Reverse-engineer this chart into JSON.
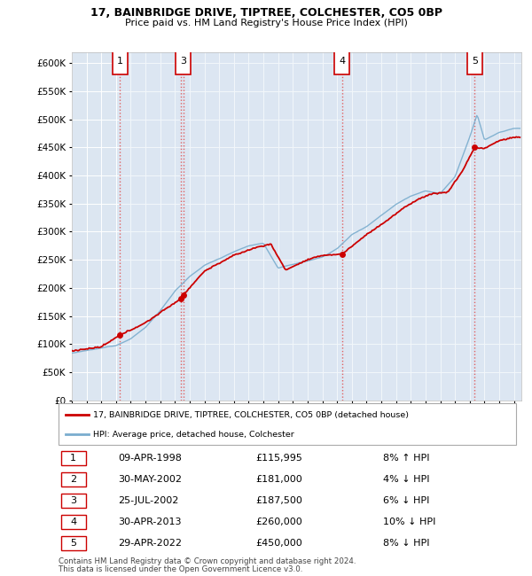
{
  "title1": "17, BAINBRIDGE DRIVE, TIPTREE, COLCHESTER, CO5 0BP",
  "title2": "Price paid vs. HM Land Registry's House Price Index (HPI)",
  "legend_label_red": "17, BAINBRIDGE DRIVE, TIPTREE, COLCHESTER, CO5 0BP (detached house)",
  "legend_label_blue": "HPI: Average price, detached house, Colchester",
  "footnote1": "Contains HM Land Registry data © Crown copyright and database right 2024.",
  "footnote2": "This data is licensed under the Open Government Licence v3.0.",
  "transactions": [
    {
      "num": 1,
      "date": "09-APR-1998",
      "price": 115995,
      "pct": "8% ↑ HPI",
      "year": 1998.27
    },
    {
      "num": 2,
      "date": "30-MAY-2002",
      "price": 181000,
      "pct": "4% ↓ HPI",
      "year": 2002.41
    },
    {
      "num": 3,
      "date": "25-JUL-2002",
      "price": 187500,
      "pct": "6% ↓ HPI",
      "year": 2002.56
    },
    {
      "num": 4,
      "date": "30-APR-2013",
      "price": 260000,
      "pct": "10% ↓ HPI",
      "year": 2013.33
    },
    {
      "num": 5,
      "date": "29-APR-2022",
      "price": 450000,
      "pct": "8% ↓ HPI",
      "year": 2022.33
    }
  ],
  "ylim": [
    0,
    620000
  ],
  "xlim_start": 1995.0,
  "xlim_end": 2025.5,
  "background_color": "#dce6f1",
  "grid_color": "#ffffff",
  "red_color": "#cc0000",
  "blue_color": "#7aadce",
  "vline_color": "#e06060",
  "shade_color": "#dde8f5",
  "table_rows": [
    [
      "1",
      "09-APR-1998",
      "£115,995",
      "8% ↑ HPI"
    ],
    [
      "2",
      "30-MAY-2002",
      "£181,000",
      "4% ↓ HPI"
    ],
    [
      "3",
      "25-JUL-2002",
      "£187,500",
      "6% ↓ HPI"
    ],
    [
      "4",
      "30-APR-2013",
      "£260,000",
      "10% ↓ HPI"
    ],
    [
      "5",
      "29-APR-2022",
      "£450,000",
      "8% ↓ HPI"
    ]
  ]
}
